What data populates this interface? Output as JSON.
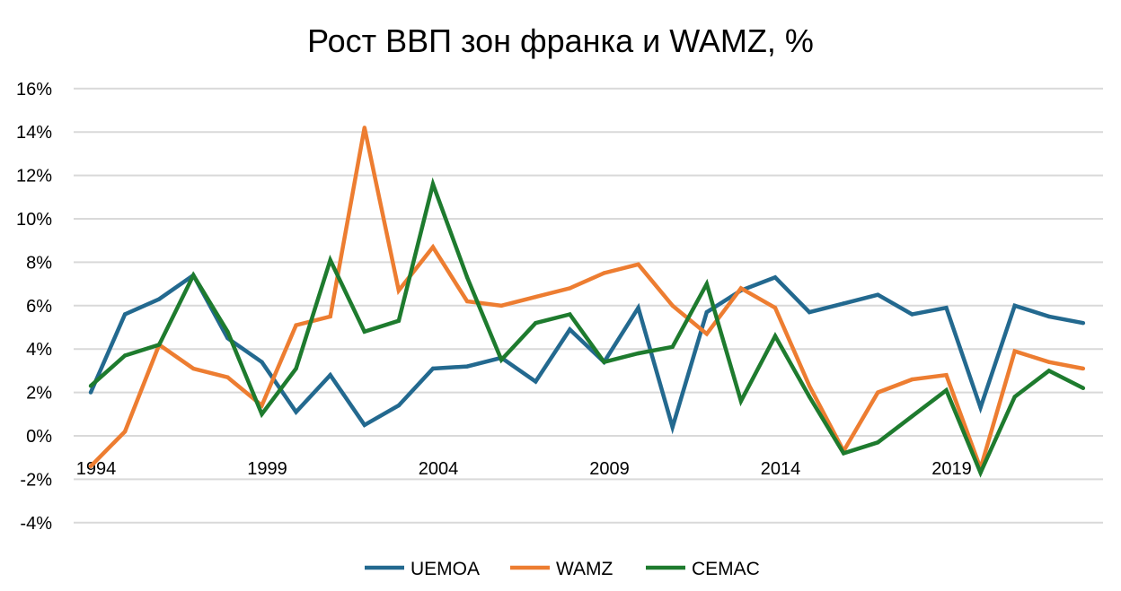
{
  "chart_data": {
    "type": "line",
    "title": "Рост ВВП зон франка и WAMZ, %",
    "xlabel": "",
    "ylabel": "",
    "ylim": [
      -4,
      16
    ],
    "y_ticks": [
      -4,
      -2,
      0,
      2,
      4,
      6,
      8,
      10,
      12,
      14,
      16
    ],
    "y_tick_labels": [
      "-4%",
      "-2%",
      "0%",
      "2%",
      "4%",
      "6%",
      "8%",
      "10%",
      "12%",
      "14%",
      "16%"
    ],
    "x_tick_labels": [
      "1994",
      "1999",
      "2004",
      "2009",
      "2014",
      "2019"
    ],
    "x": [
      1994,
      1995,
      1996,
      1997,
      1998,
      1999,
      2000,
      2001,
      2002,
      2003,
      2004,
      2005,
      2006,
      2007,
      2008,
      2009,
      2010,
      2011,
      2012,
      2013,
      2014,
      2015,
      2016,
      2017,
      2018,
      2019,
      2020,
      2021,
      2022,
      2023
    ],
    "grid": true,
    "legend_position": "bottom",
    "series": [
      {
        "name": "UEMOA",
        "color": "#23698F",
        "values": [
          2.0,
          5.6,
          6.3,
          7.4,
          4.5,
          3.4,
          1.1,
          2.8,
          0.5,
          1.4,
          3.1,
          3.2,
          3.6,
          2.5,
          4.9,
          3.4,
          5.9,
          0.4,
          5.7,
          6.7,
          7.3,
          5.7,
          6.1,
          6.5,
          5.6,
          5.9,
          1.3,
          6.0,
          5.5,
          5.2
        ]
      },
      {
        "name": "WAMZ",
        "color": "#ED7D31",
        "values": [
          -1.4,
          0.2,
          4.2,
          3.1,
          2.7,
          1.4,
          5.1,
          5.5,
          14.2,
          6.7,
          8.7,
          6.2,
          6.0,
          6.4,
          6.8,
          7.5,
          7.9,
          6.0,
          4.7,
          6.8,
          5.9,
          2.3,
          -0.7,
          2.0,
          2.6,
          2.8,
          -1.5,
          3.9,
          3.4,
          3.1
        ]
      },
      {
        "name": "CEMAC",
        "color": "#1E7B2E",
        "values": [
          2.3,
          3.7,
          4.2,
          7.4,
          4.8,
          1.0,
          3.1,
          8.1,
          4.8,
          5.3,
          11.6,
          7.3,
          3.5,
          5.2,
          5.6,
          3.4,
          3.8,
          4.1,
          7.0,
          1.6,
          4.6,
          1.8,
          -0.8,
          -0.3,
          0.9,
          2.1,
          -1.7,
          1.8,
          3.0,
          2.2
        ]
      }
    ]
  }
}
